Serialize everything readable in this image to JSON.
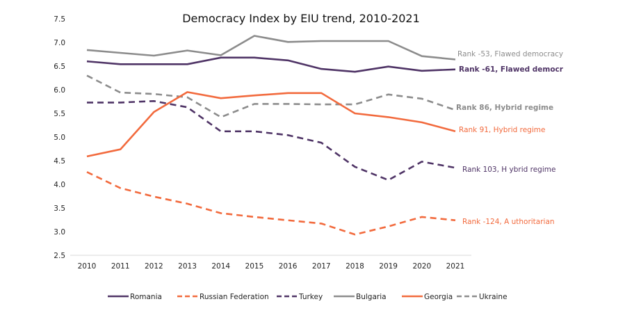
{
  "chart_data": {
    "type": "line",
    "title": "Democracy Index by EIU trend, 2010-2021",
    "xlabel": "",
    "ylabel": "",
    "x": [
      "2010",
      "2011",
      "2012",
      "2013",
      "2014",
      "2015",
      "2016",
      "2017",
      "2018",
      "2019",
      "2020",
      "2021"
    ],
    "ylim": [
      2.5,
      7.5
    ],
    "yticks": [
      "2.5",
      "3.0",
      "3.5",
      "4.0",
      "4.5",
      "5.0",
      "5.5",
      "6.0",
      "6.5",
      "7.0",
      "7.5"
    ],
    "grid": false,
    "legend_position": "bottom",
    "series": [
      {
        "name": "Romania",
        "color": "#4f3466",
        "dash": "solid",
        "values": [
          6.6,
          6.54,
          6.54,
          6.54,
          6.68,
          6.68,
          6.62,
          6.44,
          6.38,
          6.49,
          6.4,
          6.43
        ],
        "annotation": "Rank -61,  Flawed democr",
        "annotation_bold": true
      },
      {
        "name": "Russian Federation",
        "color": "#f26a3d",
        "dash": "dashed",
        "values": [
          4.26,
          3.92,
          3.74,
          3.59,
          3.39,
          3.31,
          3.24,
          3.17,
          2.94,
          3.11,
          3.31,
          3.24
        ],
        "annotation": "Rank -124, A uthoritarian",
        "annotation_bold": false
      },
      {
        "name": "Turkey",
        "color": "#4f3466",
        "dash": "dashed",
        "values": [
          5.73,
          5.73,
          5.76,
          5.63,
          5.12,
          5.12,
          5.04,
          4.88,
          4.37,
          4.09,
          4.48,
          4.35
        ],
        "annotation": "Rank 103, H ybrid regime",
        "annotation_bold": false
      },
      {
        "name": "Bulgaria",
        "color": "#8c8c8c",
        "dash": "solid",
        "values": [
          6.84,
          6.78,
          6.72,
          6.83,
          6.73,
          7.14,
          7.01,
          7.03,
          7.03,
          7.03,
          6.71,
          6.64
        ],
        "annotation": "Rank -53,  Flawed democracy",
        "annotation_bold": false
      },
      {
        "name": "Georgia",
        "color": "#f26a3d",
        "dash": "solid",
        "values": [
          4.59,
          4.74,
          5.53,
          5.95,
          5.82,
          5.88,
          5.93,
          5.93,
          5.5,
          5.42,
          5.31,
          5.12
        ],
        "annotation": "Rank 91, Hybrid regime",
        "annotation_bold": false
      },
      {
        "name": "Ukraine",
        "color": "#8c8c8c",
        "dash": "dashed",
        "values": [
          6.3,
          5.94,
          5.91,
          5.84,
          5.42,
          5.7,
          5.7,
          5.69,
          5.69,
          5.9,
          5.81,
          5.57
        ],
        "annotation": "Rank 86, Hybrid regime",
        "annotation_bold": true
      }
    ]
  }
}
